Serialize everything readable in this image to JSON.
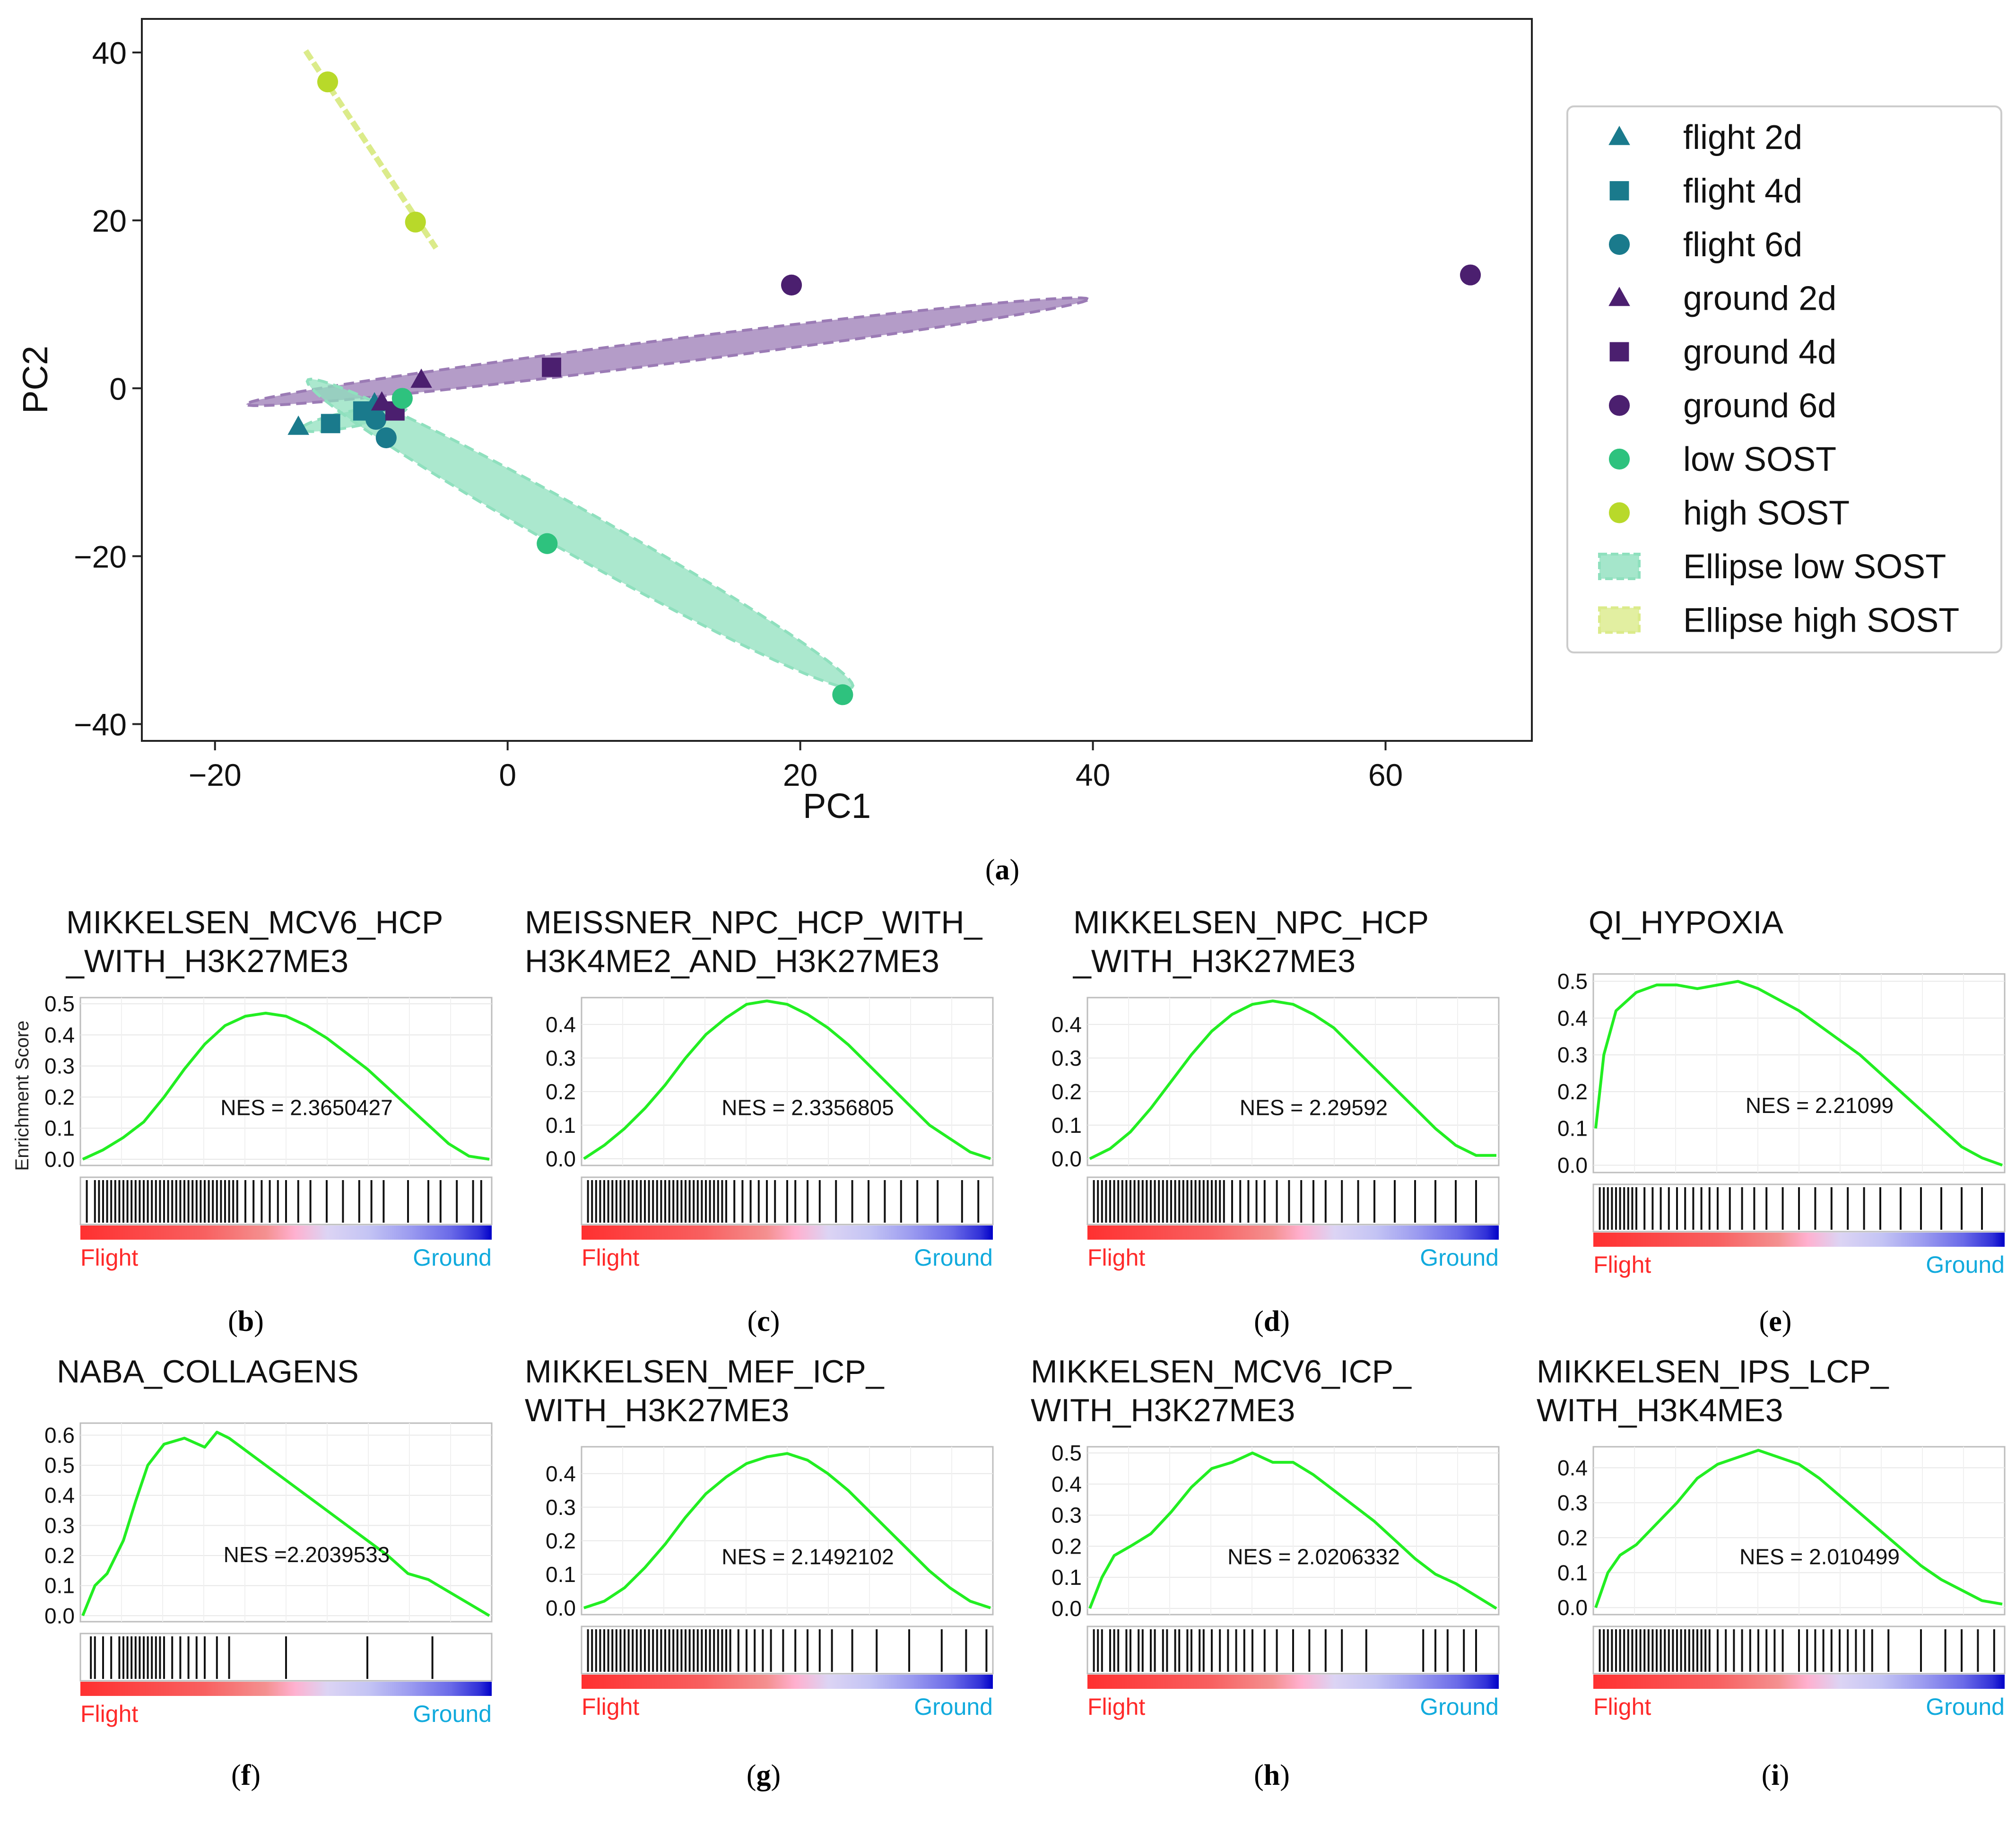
{
  "colors": {
    "flight": "#1a7a8c",
    "ground": "#4b1f6f",
    "low_sost": "#2ec27e",
    "high_sost": "#b8d92a",
    "ellipse_ground": "#9b7bb5",
    "ellipse_low": "#8fe0be",
    "ellipse_high": "#dbeb8a",
    "enrichment_line": "#22ee22",
    "flight_label": "#ff2a2a",
    "ground_label": "#11aadd"
  },
  "chart_data": [
    {
      "id": "a",
      "type": "scatter",
      "panel_label": "a",
      "xlabel": "PC1",
      "ylabel": "PC2",
      "xlim": [
        -25,
        70
      ],
      "ylim": [
        -42,
        44
      ],
      "xticks": [
        -20,
        0,
        20,
        40,
        60
      ],
      "xtick_labels": [
        "−20",
        "0",
        "20",
        "40",
        "60"
      ],
      "yticks": [
        -40,
        -20,
        0,
        20,
        40
      ],
      "ytick_labels": [
        "−40",
        "−20",
        "0",
        "20",
        "40"
      ],
      "legend_position": "right-outside",
      "series": [
        {
          "name": "flight 2d",
          "marker": "triangle",
          "color": "flight",
          "points": [
            [
              -14.3,
              -4.6
            ],
            [
              -9.1,
              -1.8
            ]
          ]
        },
        {
          "name": "flight 4d",
          "marker": "square",
          "color": "flight",
          "points": [
            [
              -12.1,
              -4.2
            ],
            [
              -9.9,
              -2.7
            ]
          ]
        },
        {
          "name": "flight 6d",
          "marker": "circle",
          "color": "flight",
          "points": [
            [
              -8.3,
              -5.9
            ],
            [
              -9.0,
              -3.7
            ]
          ]
        },
        {
          "name": "ground 2d",
          "marker": "triangle",
          "color": "ground",
          "points": [
            [
              -5.9,
              1.0
            ],
            [
              -8.6,
              -1.7
            ]
          ]
        },
        {
          "name": "ground 4d",
          "marker": "square",
          "color": "ground",
          "points": [
            [
              3.0,
              2.5
            ],
            [
              -7.7,
              -2.7
            ]
          ]
        },
        {
          "name": "ground 6d",
          "marker": "circle",
          "color": "ground",
          "points": [
            [
              19.4,
              12.3
            ],
            [
              65.8,
              13.5
            ]
          ]
        },
        {
          "name": "low SOST",
          "marker": "circle",
          "color": "low_sost",
          "points": [
            [
              2.7,
              -18.5
            ],
            [
              22.9,
              -36.5
            ],
            [
              -7.2,
              -1.2
            ]
          ]
        },
        {
          "name": "high SOST",
          "marker": "circle",
          "color": "high_sost",
          "points": [
            [
              -12.3,
              36.5
            ],
            [
              -6.3,
              19.8
            ]
          ]
        },
        {
          "name": "Ellipse low SOST",
          "marker": "ellipse-patch",
          "color": "ellipse_low",
          "points": []
        },
        {
          "name": "Ellipse high SOST",
          "marker": "ellipse-patch",
          "color": "ellipse_high",
          "points": []
        }
      ],
      "ellipses": [
        {
          "group": "ground",
          "color": "ellipse_ground",
          "center": [
            10.9,
            4.35
          ],
          "semi_major": 29.45,
          "semi_minor": 1.4,
          "angle_deg": 12.3
        },
        {
          "group": "low SOST",
          "color": "ellipse_low",
          "center": [
            4.95,
            -17.3
          ],
          "semi_major": 26.1,
          "semi_minor": 2.2,
          "angle_deg": -44.6
        },
        {
          "group": "flight",
          "color": "ellipse_low",
          "center": [
            -10.5,
            -3.6
          ],
          "semi_major": 3.8,
          "semi_minor": 0.9,
          "angle_deg": 20
        }
      ],
      "high_sost_line": [
        [
          -13.8,
          40.2
        ],
        [
          -4.9,
          16.7
        ]
      ]
    },
    {
      "id": "b",
      "type": "line",
      "panel_label": "b",
      "title": [
        "MIKKELSEN_MCV6_HCP",
        "_WITH_H3K27ME3"
      ],
      "ylabel": "Enrichment Score",
      "nes": "NES = 2.3650427",
      "yticks": [
        "0.0",
        "0.1",
        "0.2",
        "0.3",
        "0.4",
        "0.5"
      ],
      "ylim": [
        -0.02,
        0.52
      ],
      "x": [
        0,
        0.05,
        0.1,
        0.15,
        0.2,
        0.25,
        0.3,
        0.35,
        0.4,
        0.45,
        0.5,
        0.55,
        0.6,
        0.65,
        0.7,
        0.75,
        0.8,
        0.85,
        0.9,
        0.95,
        1.0
      ],
      "values": [
        0.0,
        0.03,
        0.07,
        0.12,
        0.2,
        0.29,
        0.37,
        0.43,
        0.46,
        0.47,
        0.46,
        0.43,
        0.39,
        0.34,
        0.29,
        0.23,
        0.17,
        0.11,
        0.05,
        0.01,
        0.0
      ],
      "hits": [
        0.01,
        0.03,
        0.04,
        0.05,
        0.06,
        0.07,
        0.08,
        0.09,
        0.1,
        0.11,
        0.12,
        0.13,
        0.14,
        0.15,
        0.16,
        0.17,
        0.18,
        0.19,
        0.2,
        0.21,
        0.22,
        0.23,
        0.24,
        0.25,
        0.26,
        0.27,
        0.28,
        0.29,
        0.3,
        0.31,
        0.32,
        0.33,
        0.34,
        0.35,
        0.36,
        0.37,
        0.38,
        0.4,
        0.42,
        0.44,
        0.46,
        0.48,
        0.5,
        0.53,
        0.56,
        0.6,
        0.64,
        0.68,
        0.71,
        0.74,
        0.8,
        0.85,
        0.88,
        0.92,
        0.96,
        0.98
      ],
      "xlabels": [
        "Flight",
        "Ground"
      ]
    },
    {
      "id": "c",
      "type": "line",
      "panel_label": "c",
      "title": [
        "MEISSNER_NPC_HCP_WITH_",
        "H3K4ME2_AND_H3K27ME3"
      ],
      "ylabel": "",
      "nes": "NES = 2.3356805",
      "yticks": [
        "0.0",
        "0.1",
        "0.2",
        "0.3",
        "0.4"
      ],
      "ylim": [
        -0.02,
        0.48
      ],
      "x": [
        0,
        0.05,
        0.1,
        0.15,
        0.2,
        0.25,
        0.3,
        0.35,
        0.4,
        0.45,
        0.5,
        0.55,
        0.6,
        0.65,
        0.7,
        0.75,
        0.8,
        0.85,
        0.9,
        0.95,
        1.0
      ],
      "values": [
        0.0,
        0.04,
        0.09,
        0.15,
        0.22,
        0.3,
        0.37,
        0.42,
        0.46,
        0.47,
        0.46,
        0.43,
        0.39,
        0.34,
        0.28,
        0.22,
        0.16,
        0.1,
        0.06,
        0.02,
        0.0
      ],
      "hits": [
        0.01,
        0.02,
        0.03,
        0.04,
        0.05,
        0.06,
        0.07,
        0.08,
        0.09,
        0.1,
        0.11,
        0.12,
        0.13,
        0.14,
        0.15,
        0.16,
        0.17,
        0.18,
        0.19,
        0.2,
        0.21,
        0.22,
        0.23,
        0.24,
        0.25,
        0.26,
        0.27,
        0.28,
        0.29,
        0.3,
        0.31,
        0.32,
        0.33,
        0.34,
        0.35,
        0.37,
        0.39,
        0.41,
        0.43,
        0.45,
        0.47,
        0.5,
        0.52,
        0.55,
        0.58,
        0.62,
        0.66,
        0.7,
        0.74,
        0.78,
        0.82,
        0.87,
        0.93,
        0.97
      ],
      "xlabels": [
        "Flight",
        "Ground"
      ]
    },
    {
      "id": "d",
      "type": "line",
      "panel_label": "d",
      "title": [
        "MIKKELSEN_NPC_HCP",
        "_WITH_H3K27ME3"
      ],
      "ylabel": "",
      "nes": "NES = 2.29592",
      "yticks": [
        "0.0",
        "0.1",
        "0.2",
        "0.3",
        "0.4"
      ],
      "ylim": [
        -0.02,
        0.48
      ],
      "x": [
        0,
        0.05,
        0.1,
        0.15,
        0.2,
        0.25,
        0.3,
        0.35,
        0.4,
        0.45,
        0.5,
        0.55,
        0.6,
        0.65,
        0.7,
        0.75,
        0.8,
        0.85,
        0.9,
        0.95,
        1.0
      ],
      "values": [
        0.0,
        0.03,
        0.08,
        0.15,
        0.23,
        0.31,
        0.38,
        0.43,
        0.46,
        0.47,
        0.46,
        0.43,
        0.39,
        0.33,
        0.27,
        0.21,
        0.15,
        0.09,
        0.04,
        0.01,
        0.01
      ],
      "hits": [
        0.01,
        0.02,
        0.03,
        0.04,
        0.05,
        0.06,
        0.07,
        0.08,
        0.09,
        0.1,
        0.11,
        0.12,
        0.13,
        0.14,
        0.15,
        0.16,
        0.17,
        0.18,
        0.19,
        0.2,
        0.21,
        0.22,
        0.23,
        0.24,
        0.25,
        0.26,
        0.27,
        0.28,
        0.29,
        0.3,
        0.31,
        0.32,
        0.33,
        0.35,
        0.37,
        0.39,
        0.41,
        0.43,
        0.46,
        0.49,
        0.52,
        0.55,
        0.58,
        0.62,
        0.66,
        0.7,
        0.75,
        0.8,
        0.85,
        0.9,
        0.95
      ],
      "xlabels": [
        "Flight",
        "Ground"
      ]
    },
    {
      "id": "e",
      "type": "line",
      "panel_label": "e",
      "title": [
        "QI_HYPOXIA"
      ],
      "ylabel": "",
      "nes": "NES = 2.21099",
      "yticks": [
        "0.0",
        "0.1",
        "0.2",
        "0.3",
        "0.4",
        "0.5"
      ],
      "ylim": [
        -0.02,
        0.52
      ],
      "x": [
        0,
        0.02,
        0.05,
        0.1,
        0.15,
        0.2,
        0.25,
        0.3,
        0.35,
        0.4,
        0.45,
        0.5,
        0.55,
        0.6,
        0.65,
        0.7,
        0.75,
        0.8,
        0.85,
        0.9,
        0.95,
        1.0
      ],
      "values": [
        0.1,
        0.3,
        0.42,
        0.47,
        0.49,
        0.49,
        0.48,
        0.49,
        0.5,
        0.48,
        0.45,
        0.42,
        0.38,
        0.34,
        0.3,
        0.25,
        0.2,
        0.15,
        0.1,
        0.05,
        0.02,
        0.0
      ],
      "hits": [
        0.01,
        0.02,
        0.03,
        0.04,
        0.05,
        0.06,
        0.07,
        0.08,
        0.09,
        0.1,
        0.12,
        0.14,
        0.16,
        0.18,
        0.2,
        0.22,
        0.24,
        0.26,
        0.28,
        0.3,
        0.33,
        0.36,
        0.39,
        0.42,
        0.46,
        0.5,
        0.54,
        0.58,
        0.62,
        0.66,
        0.7,
        0.75,
        0.8,
        0.85,
        0.9,
        0.95
      ],
      "xlabels": [
        "Flight",
        "Ground"
      ]
    },
    {
      "id": "f",
      "type": "line",
      "panel_label": "f",
      "title": [
        "NABA_COLLAGENS"
      ],
      "ylabel": "",
      "nes": "NES =2.2039533",
      "yticks": [
        "0.0",
        "0.1",
        "0.2",
        "0.3",
        "0.4",
        "0.5",
        "0.6"
      ],
      "ylim": [
        -0.02,
        0.64
      ],
      "x": [
        0,
        0.03,
        0.06,
        0.1,
        0.13,
        0.16,
        0.2,
        0.25,
        0.3,
        0.33,
        0.36,
        0.4,
        0.45,
        0.5,
        0.55,
        0.6,
        0.65,
        0.7,
        0.75,
        0.8,
        0.85,
        0.9,
        0.95,
        1.0
      ],
      "values": [
        0.0,
        0.1,
        0.14,
        0.25,
        0.38,
        0.5,
        0.57,
        0.59,
        0.56,
        0.61,
        0.59,
        0.55,
        0.5,
        0.45,
        0.4,
        0.35,
        0.3,
        0.25,
        0.2,
        0.14,
        0.12,
        0.08,
        0.04,
        0.0
      ],
      "hits": [
        0.02,
        0.03,
        0.05,
        0.07,
        0.09,
        0.1,
        0.11,
        0.12,
        0.13,
        0.14,
        0.15,
        0.16,
        0.17,
        0.18,
        0.19,
        0.2,
        0.22,
        0.24,
        0.26,
        0.28,
        0.3,
        0.33,
        0.36,
        0.5,
        0.7,
        0.86
      ],
      "xlabels": [
        "Flight",
        "Ground"
      ]
    },
    {
      "id": "g",
      "type": "line",
      "panel_label": "g",
      "title": [
        "MIKKELSEN_MEF_ICP_",
        "WITH_H3K27ME3"
      ],
      "ylabel": "",
      "nes": "NES = 2.1492102",
      "yticks": [
        "0.0",
        "0.1",
        "0.2",
        "0.3",
        "0.4"
      ],
      "ylim": [
        -0.02,
        0.48
      ],
      "x": [
        0,
        0.05,
        0.1,
        0.15,
        0.2,
        0.25,
        0.3,
        0.35,
        0.4,
        0.45,
        0.5,
        0.55,
        0.6,
        0.65,
        0.7,
        0.75,
        0.8,
        0.85,
        0.9,
        0.95,
        1.0
      ],
      "values": [
        0.0,
        0.02,
        0.06,
        0.12,
        0.19,
        0.27,
        0.34,
        0.39,
        0.43,
        0.45,
        0.46,
        0.44,
        0.4,
        0.35,
        0.29,
        0.23,
        0.17,
        0.11,
        0.06,
        0.02,
        0.0
      ],
      "hits": [
        0.01,
        0.02,
        0.03,
        0.04,
        0.05,
        0.06,
        0.07,
        0.08,
        0.09,
        0.1,
        0.11,
        0.12,
        0.13,
        0.14,
        0.15,
        0.16,
        0.17,
        0.18,
        0.19,
        0.2,
        0.21,
        0.22,
        0.23,
        0.24,
        0.25,
        0.26,
        0.27,
        0.28,
        0.29,
        0.3,
        0.31,
        0.32,
        0.33,
        0.34,
        0.35,
        0.36,
        0.38,
        0.4,
        0.42,
        0.44,
        0.46,
        0.49,
        0.52,
        0.55,
        0.58,
        0.61,
        0.66,
        0.72,
        0.8,
        0.88,
        0.94,
        0.99
      ],
      "xlabels": [
        "Flight",
        "Ground"
      ]
    },
    {
      "id": "h",
      "type": "line",
      "panel_label": "h",
      "title": [
        "MIKKELSEN_MCV6_ICP_",
        "WITH_H3K27ME3"
      ],
      "ylabel": "",
      "nes": "NES = 2.0206332",
      "yticks": [
        "0.0",
        "0.1",
        "0.2",
        "0.3",
        "0.4",
        "0.5"
      ],
      "ylim": [
        -0.02,
        0.52
      ],
      "x": [
        0,
        0.03,
        0.06,
        0.1,
        0.15,
        0.2,
        0.25,
        0.3,
        0.35,
        0.4,
        0.45,
        0.5,
        0.55,
        0.6,
        0.65,
        0.7,
        0.75,
        0.8,
        0.85,
        0.9,
        0.95,
        1.0
      ],
      "values": [
        0.0,
        0.1,
        0.17,
        0.2,
        0.24,
        0.31,
        0.39,
        0.45,
        0.47,
        0.5,
        0.47,
        0.47,
        0.43,
        0.38,
        0.33,
        0.28,
        0.22,
        0.16,
        0.11,
        0.08,
        0.04,
        0.0
      ],
      "hits": [
        0.01,
        0.02,
        0.03,
        0.05,
        0.06,
        0.07,
        0.09,
        0.1,
        0.12,
        0.13,
        0.15,
        0.16,
        0.18,
        0.19,
        0.21,
        0.22,
        0.24,
        0.25,
        0.27,
        0.28,
        0.3,
        0.32,
        0.34,
        0.36,
        0.38,
        0.4,
        0.43,
        0.46,
        0.5,
        0.54,
        0.58,
        0.62,
        0.68,
        0.82,
        0.85,
        0.88,
        0.92,
        0.95
      ],
      "xlabels": [
        "Flight",
        "Ground"
      ]
    },
    {
      "id": "i",
      "type": "line",
      "panel_label": "i",
      "title": [
        "MIKKELSEN_IPS_LCP_",
        "WITH_H3K4ME3"
      ],
      "ylabel": "",
      "nes": "NES = 2.010499",
      "yticks": [
        "0.0",
        "0.1",
        "0.2",
        "0.3",
        "0.4"
      ],
      "ylim": [
        -0.02,
        0.46
      ],
      "x": [
        0,
        0.03,
        0.06,
        0.1,
        0.15,
        0.2,
        0.25,
        0.3,
        0.35,
        0.4,
        0.45,
        0.5,
        0.55,
        0.6,
        0.65,
        0.7,
        0.75,
        0.8,
        0.85,
        0.9,
        0.95,
        1.0
      ],
      "values": [
        0.0,
        0.1,
        0.15,
        0.18,
        0.24,
        0.3,
        0.37,
        0.41,
        0.43,
        0.45,
        0.43,
        0.41,
        0.37,
        0.32,
        0.27,
        0.22,
        0.17,
        0.12,
        0.08,
        0.05,
        0.02,
        0.01
      ],
      "hits": [
        0.01,
        0.02,
        0.03,
        0.04,
        0.05,
        0.06,
        0.07,
        0.08,
        0.09,
        0.1,
        0.11,
        0.12,
        0.13,
        0.14,
        0.15,
        0.16,
        0.17,
        0.18,
        0.19,
        0.2,
        0.21,
        0.22,
        0.23,
        0.24,
        0.25,
        0.26,
        0.27,
        0.28,
        0.3,
        0.32,
        0.34,
        0.36,
        0.38,
        0.4,
        0.42,
        0.44,
        0.46,
        0.5,
        0.52,
        0.54,
        0.56,
        0.58,
        0.6,
        0.62,
        0.64,
        0.66,
        0.68,
        0.72,
        0.8,
        0.86,
        0.9,
        0.94,
        0.98
      ],
      "xlabels": [
        "Flight",
        "Ground"
      ]
    }
  ]
}
